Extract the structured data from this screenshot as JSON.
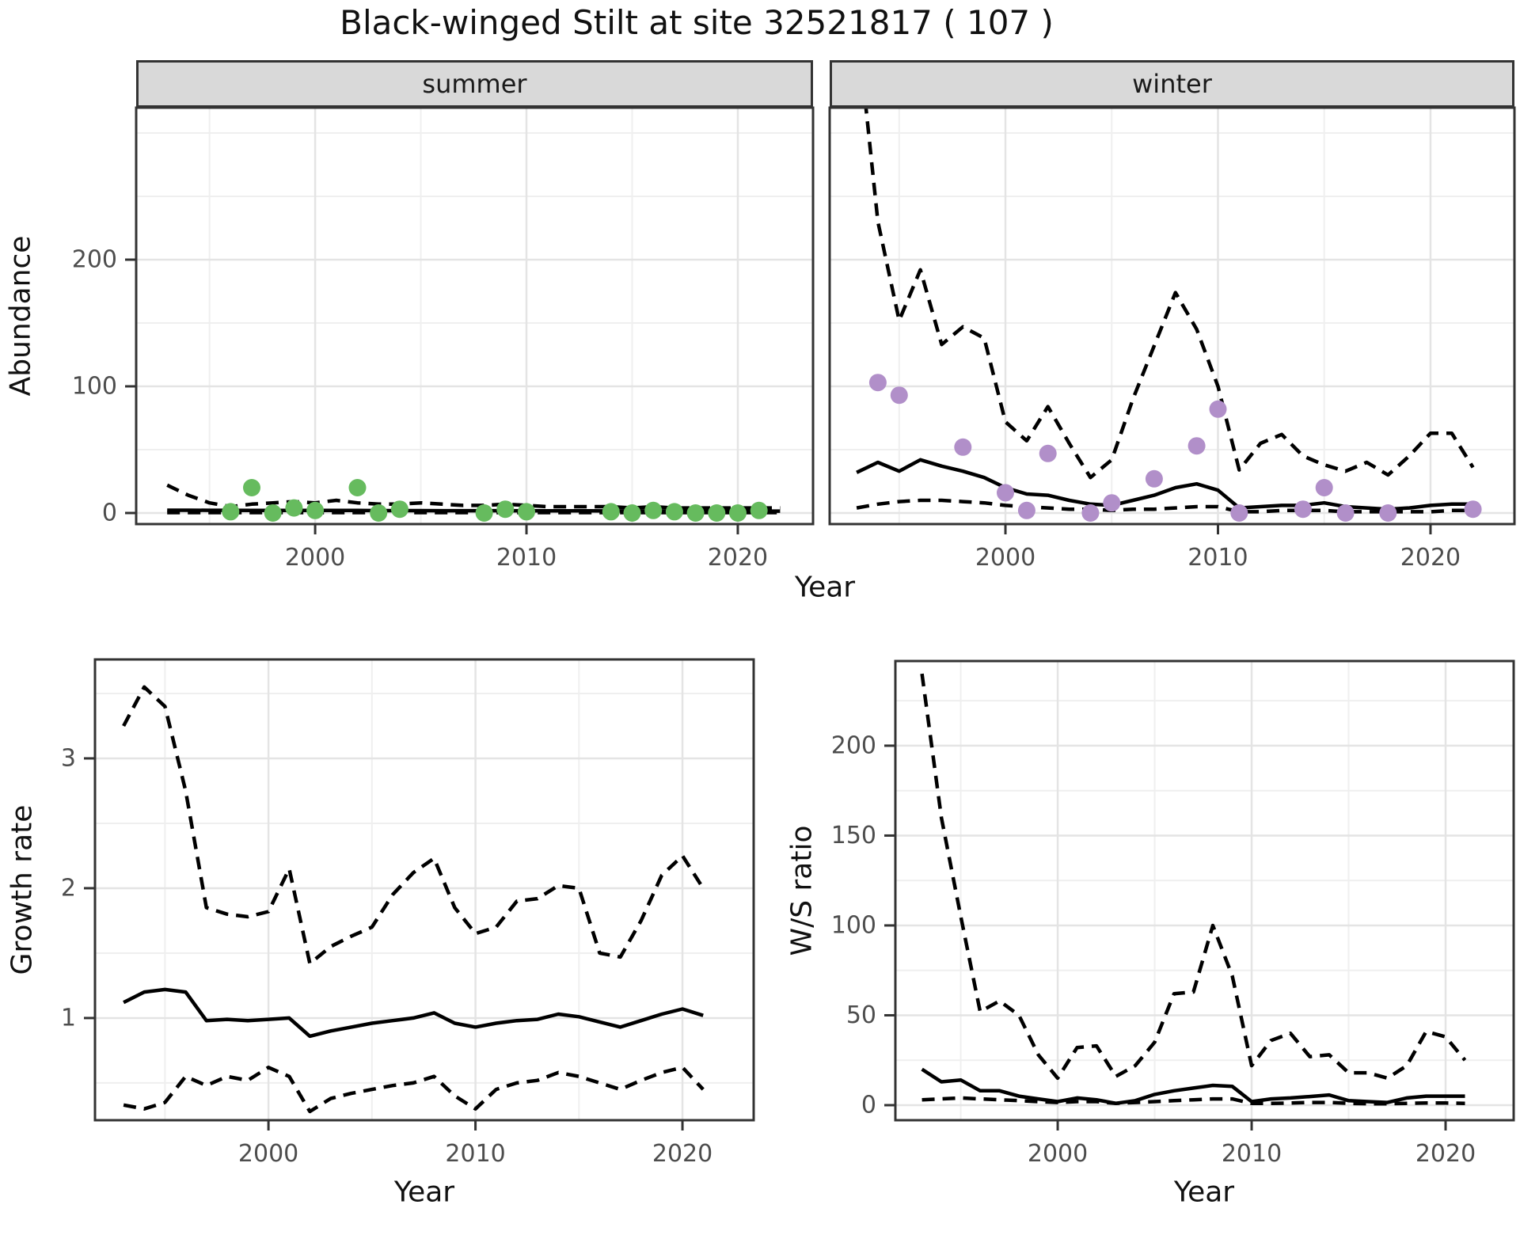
{
  "title": "Black-winged Stilt at site 32521817 ( 107 )",
  "styling": {
    "background": "#ffffff",
    "strip_background": "#d9d9d9",
    "panel_border": "#333333",
    "grid_major": "#e4e4e4",
    "grid_minor": "#efefef",
    "line_color": "#000000",
    "axis_text_color": "#4d4d4d",
    "summer_point_color": "#66BB5E",
    "winter_point_color": "#B18FC9"
  },
  "chart_data": [
    {
      "id": "abundance_summer",
      "type": "line",
      "facet_label": "summer",
      "xlabel": "Year",
      "ylabel": "Abundance",
      "x": [
        1993,
        1994,
        1995,
        1996,
        1997,
        1998,
        1999,
        2000,
        2001,
        2002,
        2003,
        2004,
        2005,
        2006,
        2007,
        2008,
        2009,
        2010,
        2011,
        2012,
        2013,
        2014,
        2015,
        2016,
        2017,
        2018,
        2019,
        2020,
        2021,
        2022
      ],
      "series": [
        {
          "name": "trend_median",
          "style": "solid",
          "values": [
            2.2,
            2.2,
            2.1,
            2.1,
            2.0,
            2.0,
            2.0,
            2.0,
            2.0,
            2.0,
            1.9,
            1.9,
            1.9,
            1.8,
            1.8,
            1.8,
            1.8,
            1.7,
            1.7,
            1.7,
            1.7,
            1.6,
            1.6,
            1.6,
            1.6,
            1.5,
            1.5,
            1.5,
            1.5,
            1.5
          ]
        },
        {
          "name": "ci_upper",
          "style": "dashed",
          "values": [
            22,
            14,
            8,
            5,
            7,
            8,
            9,
            8,
            10,
            8,
            7,
            7,
            8,
            7,
            6,
            6,
            7,
            6,
            5,
            5,
            5,
            5,
            4,
            5,
            4,
            4,
            4,
            4,
            4,
            4
          ]
        },
        {
          "name": "ci_lower",
          "style": "dashed",
          "values": [
            0.3,
            0.3,
            0.3,
            0.3,
            0.3,
            0.3,
            0.3,
            0.3,
            0.3,
            0.3,
            0.3,
            0.3,
            0.3,
            0.3,
            0.3,
            0.3,
            0.3,
            0.3,
            0.3,
            0.3,
            0.3,
            0.3,
            0.3,
            0.3,
            0.3,
            0.3,
            0.3,
            0.3,
            0.3,
            0.3
          ]
        }
      ],
      "points": {
        "name": "observed_counts",
        "color": "#66BB5E",
        "data": [
          [
            1996,
            1
          ],
          [
            1997,
            20
          ],
          [
            1998,
            0
          ],
          [
            1999,
            4
          ],
          [
            2000,
            2
          ],
          [
            2002,
            20
          ],
          [
            2003,
            0
          ],
          [
            2004,
            3
          ],
          [
            2008,
            0
          ],
          [
            2009,
            3
          ],
          [
            2010,
            1
          ],
          [
            2014,
            1
          ],
          [
            2015,
            0
          ],
          [
            2016,
            2
          ],
          [
            2017,
            1
          ],
          [
            2018,
            0
          ],
          [
            2019,
            0
          ],
          [
            2020,
            0
          ],
          [
            2021,
            2
          ]
        ]
      },
      "xlim": [
        1991.53,
        2023.56
      ],
      "ylim": [
        -8.75,
        320
      ],
      "xticks": [
        2000,
        2010,
        2020
      ],
      "xticks_minor": [
        1995,
        2005,
        2015
      ],
      "yticks": [
        0,
        100,
        200
      ],
      "yticks_minor": [
        50,
        150,
        250,
        300
      ],
      "grid": true,
      "legend": "none"
    },
    {
      "id": "abundance_winter",
      "type": "line",
      "facet_label": "winter",
      "xlabel": "",
      "ylabel": "",
      "x": [
        1993,
        1994,
        1995,
        1996,
        1997,
        1998,
        1999,
        2000,
        2001,
        2002,
        2003,
        2004,
        2005,
        2006,
        2007,
        2008,
        2009,
        2010,
        2011,
        2012,
        2013,
        2014,
        2015,
        2016,
        2017,
        2018,
        2019,
        2020,
        2021,
        2022
      ],
      "series": [
        {
          "name": "trend_median",
          "style": "solid",
          "values": [
            32,
            40,
            33,
            42,
            37,
            33,
            28,
            20,
            15,
            14,
            10,
            7,
            6,
            10,
            14,
            20,
            23,
            18,
            4,
            5,
            6,
            6,
            8,
            5,
            4,
            3,
            4,
            6,
            7,
            7
          ]
        },
        {
          "name": "ci_upper",
          "style": "dashed",
          "values": [
            390,
            230,
            152,
            192,
            133,
            147,
            138,
            72,
            57,
            84,
            55,
            28,
            42,
            90,
            132,
            174,
            145,
            100,
            34,
            55,
            62,
            45,
            38,
            33,
            40,
            30,
            45,
            63,
            63,
            36
          ]
        },
        {
          "name": "ci_lower",
          "style": "dashed",
          "values": [
            4,
            7,
            9,
            10,
            10,
            9,
            8,
            6,
            5,
            4,
            3,
            3,
            2,
            3,
            3,
            4,
            5,
            5,
            1,
            1,
            2,
            2,
            2,
            1,
            1,
            1,
            1,
            1,
            2,
            2
          ]
        }
      ],
      "points": {
        "name": "observed_counts",
        "color": "#B18FC9",
        "data": [
          [
            1994,
            103
          ],
          [
            1995,
            93
          ],
          [
            1998,
            52
          ],
          [
            2000,
            16
          ],
          [
            2001,
            2
          ],
          [
            2002,
            47
          ],
          [
            2004,
            0
          ],
          [
            2005,
            8
          ],
          [
            2007,
            27
          ],
          [
            2009,
            53
          ],
          [
            2010,
            82
          ],
          [
            2011,
            0
          ],
          [
            2014,
            3
          ],
          [
            2015,
            20
          ],
          [
            2016,
            0
          ],
          [
            2018,
            0
          ],
          [
            2022,
            3
          ]
        ]
      },
      "xlim": [
        1991.73,
        2023.95
      ],
      "ylim": [
        -8.75,
        320
      ],
      "xticks": [
        2000,
        2010,
        2020
      ],
      "xticks_minor": [
        1995,
        2005,
        2015
      ],
      "yticks": [
        0,
        100,
        200
      ],
      "yticks_minor": [
        50,
        150,
        250,
        300
      ],
      "grid": true,
      "legend": "none"
    },
    {
      "id": "growth_rate",
      "type": "line",
      "facet_label": "",
      "xlabel": "Year",
      "ylabel": "Growth rate",
      "x": [
        1993,
        1994,
        1995,
        1996,
        1997,
        1998,
        1999,
        2000,
        2001,
        2002,
        2003,
        2004,
        2005,
        2006,
        2007,
        2008,
        2009,
        2010,
        2011,
        2012,
        2013,
        2014,
        2015,
        2016,
        2017,
        2018,
        2019,
        2020,
        2021
      ],
      "series": [
        {
          "name": "trend_median",
          "style": "solid",
          "values": [
            1.12,
            1.2,
            1.22,
            1.2,
            0.98,
            0.99,
            0.98,
            0.99,
            1.0,
            0.86,
            0.9,
            0.93,
            0.96,
            0.98,
            1.0,
            1.04,
            0.96,
            0.93,
            0.96,
            0.98,
            0.99,
            1.03,
            1.01,
            0.97,
            0.93,
            0.98,
            1.03,
            1.07,
            1.02
          ]
        },
        {
          "name": "ci_upper",
          "style": "dashed",
          "values": [
            3.25,
            3.55,
            3.4,
            2.75,
            1.85,
            1.8,
            1.78,
            1.82,
            2.15,
            1.42,
            1.55,
            1.63,
            1.7,
            1.95,
            2.12,
            2.23,
            1.85,
            1.65,
            1.7,
            1.9,
            1.92,
            2.02,
            2.0,
            1.5,
            1.47,
            1.75,
            2.1,
            2.25,
            2.0
          ]
        },
        {
          "name": "ci_lower",
          "style": "dashed",
          "values": [
            0.33,
            0.3,
            0.35,
            0.55,
            0.48,
            0.55,
            0.52,
            0.62,
            0.55,
            0.28,
            0.38,
            0.42,
            0.45,
            0.48,
            0.5,
            0.55,
            0.4,
            0.3,
            0.45,
            0.5,
            0.52,
            0.58,
            0.55,
            0.5,
            0.45,
            0.52,
            0.58,
            0.62,
            0.45
          ]
        }
      ],
      "points": null,
      "xlim": [
        1991.62,
        2023.44
      ],
      "ylim": [
        0.213,
        3.762
      ],
      "xticks": [
        2000,
        2010,
        2020
      ],
      "xticks_minor": [
        1995,
        2005,
        2015
      ],
      "yticks": [
        1,
        2,
        3
      ],
      "yticks_minor": [
        0.5,
        1.5,
        2.5,
        3.5
      ],
      "grid": true,
      "legend": "none"
    },
    {
      "id": "ws_ratio",
      "type": "line",
      "facet_label": "",
      "xlabel": "Year",
      "ylabel": "W/S ratio",
      "x": [
        1993,
        1994,
        1995,
        1996,
        1997,
        1998,
        1999,
        2000,
        2001,
        2002,
        2003,
        2004,
        2005,
        2006,
        2007,
        2008,
        2009,
        2010,
        2011,
        2012,
        2013,
        2014,
        2015,
        2016,
        2017,
        2018,
        2019,
        2020,
        2021
      ],
      "series": [
        {
          "name": "trend_median",
          "style": "solid",
          "values": [
            20,
            13,
            14,
            8,
            8,
            5,
            3.5,
            2,
            4,
            3,
            1,
            2.5,
            6,
            8,
            9.5,
            11,
            10.5,
            2,
            3.5,
            4,
            4.8,
            5.7,
            2.5,
            2,
            1.5,
            4,
            5,
            5,
            5
          ]
        },
        {
          "name": "ci_upper",
          "style": "dashed",
          "values": [
            240,
            160,
            105,
            52,
            58,
            50,
            28,
            15,
            32,
            33,
            16,
            22,
            35,
            62,
            63,
            100,
            72,
            22,
            36,
            40,
            27,
            28,
            18,
            18,
            15,
            22,
            41,
            38,
            25
          ]
        },
        {
          "name": "ci_lower",
          "style": "dashed",
          "values": [
            3,
            3.5,
            4,
            3.5,
            3,
            2.5,
            2,
            1.5,
            2,
            2,
            1,
            1.5,
            2,
            2.5,
            3,
            3.5,
            3.5,
            1,
            1,
            1.2,
            1.5,
            1.5,
            1,
            0.8,
            0.8,
            1,
            1.2,
            1.2,
            1
          ]
        }
      ],
      "points": null,
      "xlim": [
        1991.63,
        2023.51
      ],
      "ylim": [
        -8.37,
        247.1
      ],
      "xticks": [
        2000,
        2010,
        2020
      ],
      "xticks_minor": [
        1995,
        2005,
        2015
      ],
      "yticks": [
        0,
        50,
        100,
        150,
        200
      ],
      "yticks_minor": [
        25,
        75,
        125,
        175,
        225
      ],
      "grid": true,
      "legend": "none"
    }
  ]
}
